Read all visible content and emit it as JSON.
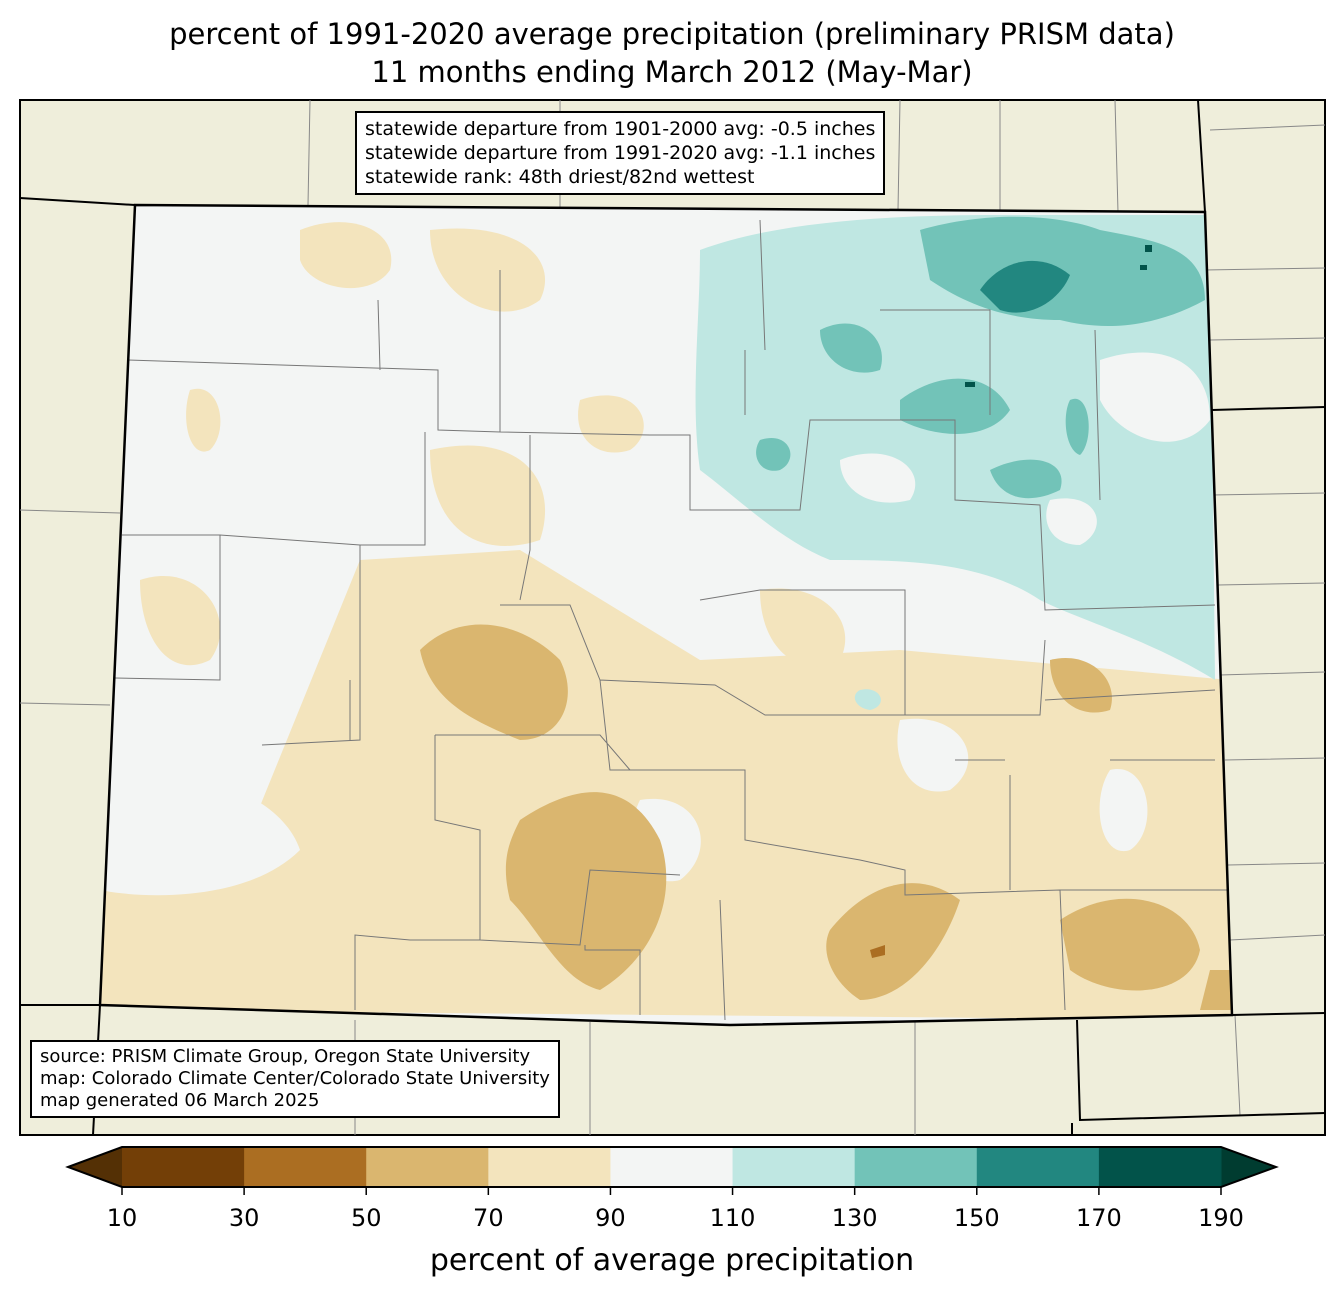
{
  "title": {
    "line1": "percent of 1991-2020 average precipitation (preliminary PRISM data)",
    "line2": "11 months ending March 2012 (May-Mar)"
  },
  "stats": {
    "line1": "statewide departure from 1901-2000 avg: -0.5 inches",
    "line2": "statewide departure from 1991-2020 avg: -1.1 inches",
    "line3": "statewide rank: 48th driest/82nd wettest"
  },
  "source": {
    "line1": "source: PRISM Climate Group, Oregon State University",
    "line2": "map: Colorado Climate Center/Colorado State University",
    "line3": "map generated 06 March 2025"
  },
  "colorbar": {
    "label": "percent of average precipitation",
    "ticks": [
      "10",
      "30",
      "50",
      "70",
      "90",
      "110",
      "130",
      "150",
      "170",
      "190"
    ],
    "colors": [
      "#733f07",
      "#ab6e22",
      "#dab66f",
      "#f3e4bd",
      "#f3f5f4",
      "#bfe7e2",
      "#72c3b8",
      "#228780",
      "#02534a"
    ],
    "under_color": "#543005",
    "over_color": "#003c30"
  },
  "colors": {
    "background_land": "#efeedb"
  }
}
